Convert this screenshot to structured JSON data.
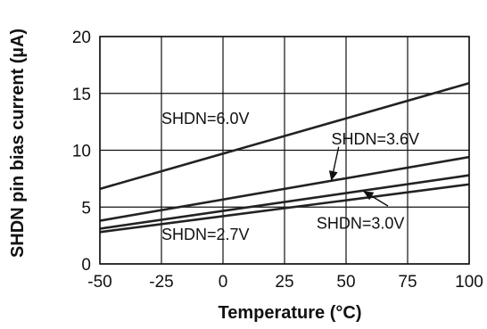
{
  "chart_data": {
    "type": "line",
    "xlabel": "Temperature (°C)",
    "ylabel": "SHDN pin bias current (µA)",
    "xlim": [
      -50,
      100
    ],
    "ylim": [
      0,
      20
    ],
    "xticks": [
      -50,
      -25,
      0,
      25,
      50,
      75,
      100
    ],
    "yticks": [
      0,
      5,
      10,
      15,
      20
    ],
    "grid": true,
    "series": [
      {
        "name": "SHDN=6.0V",
        "x": [
          -50,
          100
        ],
        "y": [
          6.6,
          15.9
        ]
      },
      {
        "name": "SHDN=3.6V",
        "x": [
          -50,
          100
        ],
        "y": [
          3.8,
          9.4
        ]
      },
      {
        "name": "SHDN=3.0V",
        "x": [
          -50,
          100
        ],
        "y": [
          3.1,
          7.8
        ]
      },
      {
        "name": "SHDN=2.7V",
        "x": [
          -50,
          100
        ],
        "y": [
          2.8,
          7.0
        ]
      }
    ],
    "annotations": [
      {
        "text": "SHDN=6.0V",
        "x": -25,
        "y": 12.3
      },
      {
        "text": "SHDN=3.6V",
        "x": 44,
        "y": 10.5
      },
      {
        "text": "SHDN=2.7V",
        "x": -25,
        "y": 2.1
      },
      {
        "text": "SHDN=3.0V",
        "x": 38,
        "y": 3.1
      }
    ]
  }
}
